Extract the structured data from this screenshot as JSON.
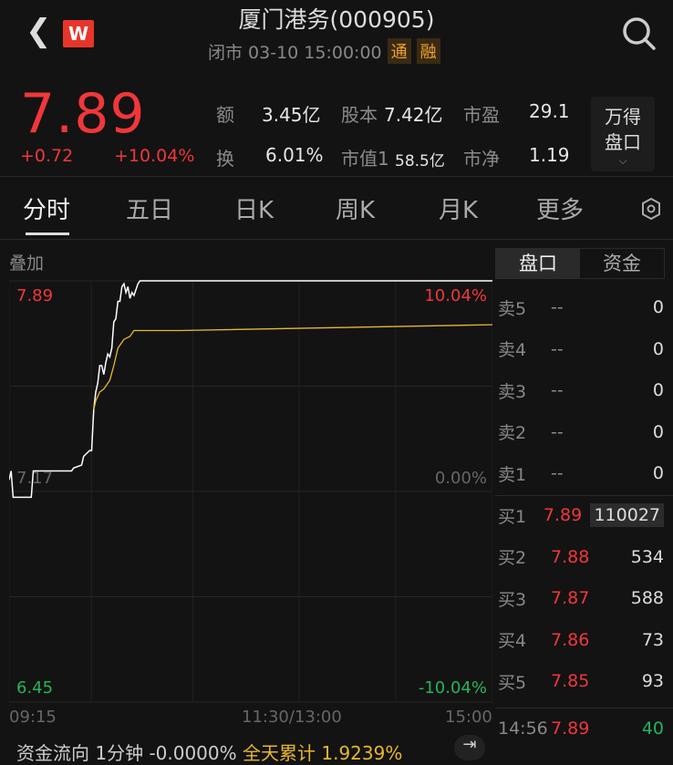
{
  "header": {
    "title": "厦门港务(000905)",
    "status": "闭市 03-10 15:00:00",
    "tags": [
      "通",
      "融"
    ],
    "logo": "W"
  },
  "quote": {
    "price": "7.89",
    "change": "+0.72",
    "change_pct": "+10.04%",
    "stats": [
      {
        "label": "额",
        "value": "3.45亿"
      },
      {
        "label": "股本",
        "value": "7.42亿"
      },
      {
        "label": "市盈",
        "value": "29.1"
      },
      {
        "label": "换",
        "value": "6.01%"
      },
      {
        "label": "市值1",
        "value": "58.5亿"
      },
      {
        "label": "市净",
        "value": "1.19"
      }
    ],
    "wind_button": [
      "万得",
      "盘口"
    ]
  },
  "tabs": [
    "分时",
    "五日",
    "日K",
    "周K",
    "月K",
    "更多"
  ],
  "chart": {
    "overlay_label": "叠加",
    "top_price": "7.89",
    "mid_price": "7.17",
    "bottom_price": "6.45",
    "top_pct": "10.04%",
    "mid_pct": "0.00%",
    "bottom_pct": "-10.04%",
    "times": [
      "09:15",
      "11:30/13:00",
      "15:00"
    ],
    "chart_data": {
      "type": "line",
      "x_unit": "minutes from open",
      "ylim": [
        6.45,
        7.89
      ],
      "xlim": [
        0,
        240
      ],
      "series": [
        {
          "color": "#ffffff",
          "points": [
            [
              0,
              7.21
            ],
            [
              1,
              7.24
            ],
            [
              2,
              7.15
            ],
            [
              11,
              7.15
            ],
            [
              12,
              7.24
            ],
            [
              31,
              7.24
            ],
            [
              32,
              7.25
            ],
            [
              36,
              7.26
            ],
            [
              37,
              7.29
            ],
            [
              40,
              7.31
            ],
            [
              41,
              7.31
            ],
            [
              42,
              7.45
            ],
            [
              43,
              7.51
            ],
            [
              44,
              7.54
            ],
            [
              45,
              7.6
            ],
            [
              46,
              7.6
            ],
            [
              47,
              7.57
            ],
            [
              48,
              7.61
            ],
            [
              49,
              7.64
            ],
            [
              50,
              7.63
            ],
            [
              51,
              7.66
            ],
            [
              52,
              7.75
            ],
            [
              53,
              7.76
            ],
            [
              54,
              7.82
            ],
            [
              55,
              7.82
            ],
            [
              56,
              7.87
            ],
            [
              57,
              7.88
            ],
            [
              58,
              7.85
            ],
            [
              59,
              7.87
            ],
            [
              60,
              7.83
            ],
            [
              61,
              7.85
            ],
            [
              62,
              7.84
            ],
            [
              63,
              7.86
            ],
            [
              64,
              7.88
            ],
            [
              65,
              7.89
            ],
            [
              240,
              7.89
            ]
          ]
        },
        {
          "color": "#e8b72e",
          "points": [
            [
              42,
              7.45
            ],
            [
              43,
              7.48
            ],
            [
              45,
              7.51
            ],
            [
              47,
              7.52
            ],
            [
              50,
              7.55
            ],
            [
              52,
              7.6
            ],
            [
              54,
              7.66
            ],
            [
              57,
              7.69
            ],
            [
              60,
              7.7
            ],
            [
              62,
              7.72
            ],
            [
              85,
              7.72
            ],
            [
              240,
              7.74
            ]
          ]
        }
      ]
    }
  },
  "orderbook": {
    "tabs": [
      "盘口",
      "资金"
    ],
    "rows": [
      {
        "l": "卖5",
        "p": "--",
        "v": "0"
      },
      {
        "l": "卖4",
        "p": "--",
        "v": "0"
      },
      {
        "l": "卖3",
        "p": "--",
        "v": "0"
      },
      {
        "l": "卖2",
        "p": "--",
        "v": "0"
      },
      {
        "l": "卖1",
        "p": "--",
        "v": "0"
      },
      {
        "l": "买1",
        "p": "7.89",
        "v": "110027"
      },
      {
        "l": "买2",
        "p": "7.88",
        "v": "534"
      },
      {
        "l": "买3",
        "p": "7.87",
        "v": "588"
      },
      {
        "l": "买4",
        "p": "7.86",
        "v": "73"
      },
      {
        "l": "买5",
        "p": "7.85",
        "v": "93"
      }
    ],
    "trade": {
      "time": "14:56",
      "price": "7.89",
      "vol": "40"
    }
  },
  "flow": {
    "label": "资金流向 1分钟 -0.0000%",
    "total": "全天累计 1.9239%"
  }
}
